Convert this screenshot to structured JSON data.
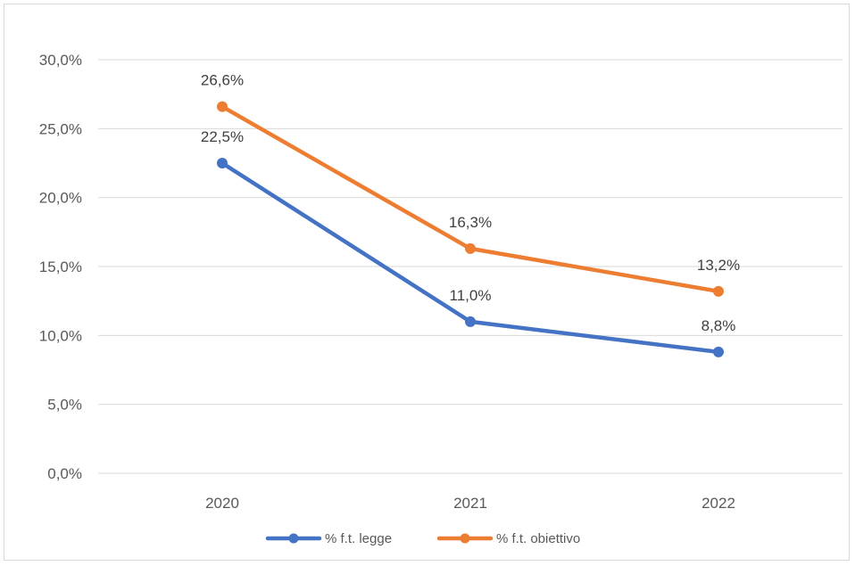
{
  "chart_data": {
    "type": "line",
    "categories": [
      "2020",
      "2021",
      "2022"
    ],
    "series": [
      {
        "name": "% f.t. legge",
        "color": "#4472C4",
        "values": [
          22.5,
          11.0,
          8.8
        ],
        "labels": [
          "22,5%",
          "11,0%",
          "8,8%"
        ]
      },
      {
        "name": "% f.t. obiettivo",
        "color": "#ED7D31",
        "values": [
          26.6,
          16.3,
          13.2
        ],
        "labels": [
          "26,6%",
          "16,3%",
          "13,2%"
        ]
      }
    ],
    "ylim": [
      0,
      30
    ],
    "yticks": [
      0,
      5,
      10,
      15,
      20,
      25,
      30
    ],
    "ytick_labels": [
      "0,0%",
      "5,0%",
      "10,0%",
      "15,0%",
      "20,0%",
      "25,0%",
      "30,0%"
    ],
    "grid": true,
    "legend_position": "bottom",
    "gridline_color": "#d9d9d9"
  }
}
